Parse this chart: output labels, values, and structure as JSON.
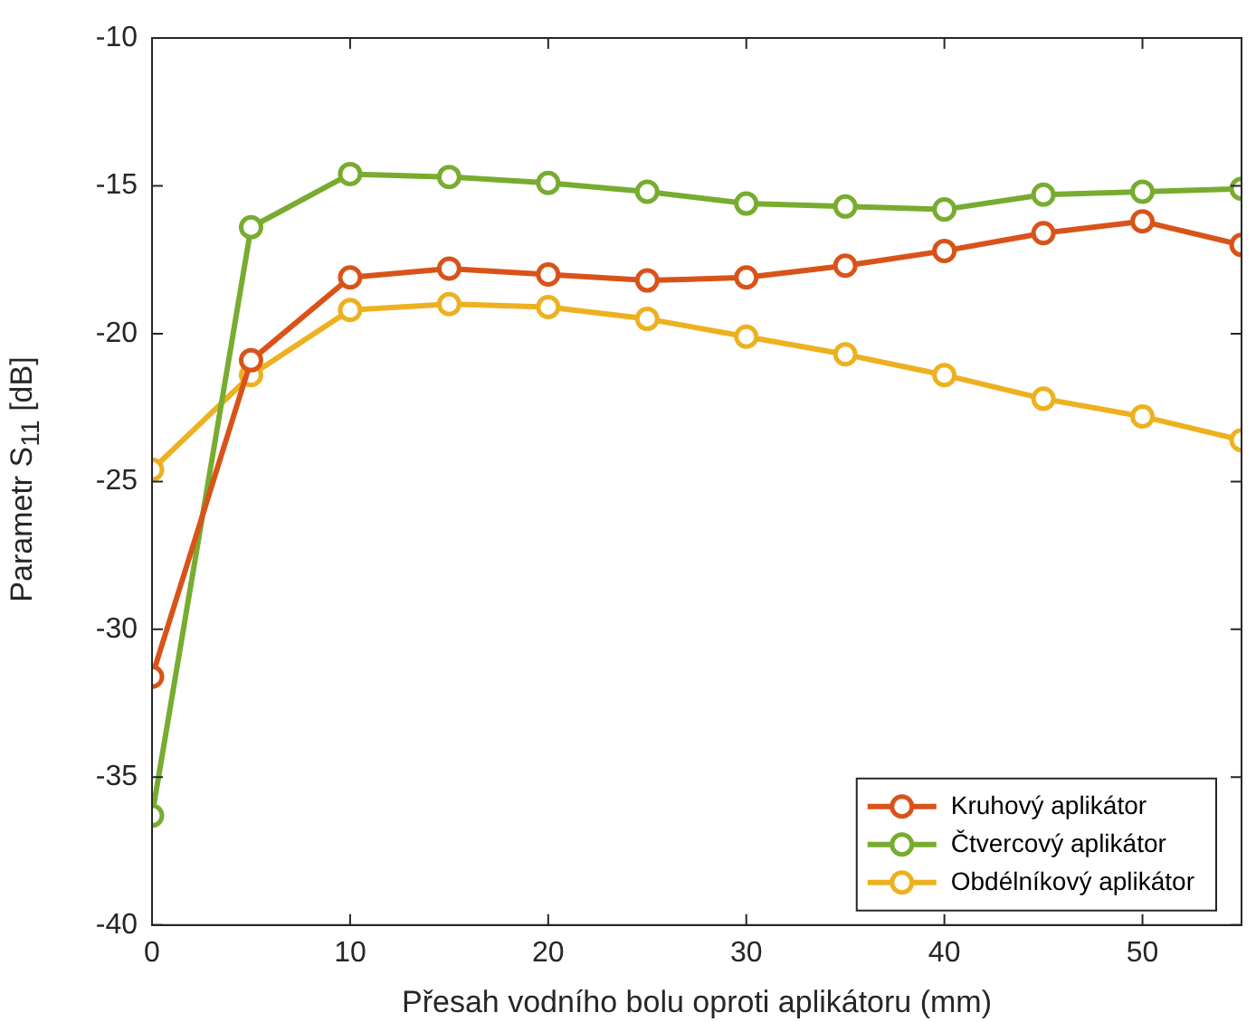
{
  "chart_data": {
    "type": "line",
    "xlabel": "Přesah vodního bolu oproti aplikátoru (mm)",
    "ylabel": "Parametr S$_{11}$ [dB]",
    "x": [
      0,
      5,
      10,
      15,
      20,
      25,
      30,
      35,
      40,
      45,
      50,
      55
    ],
    "series": [
      {
        "name": "Kruhový aplikátor",
        "color": "#d95319",
        "values": [
          -31.6,
          -20.9,
          -18.1,
          -17.8,
          -18.0,
          -18.2,
          -18.1,
          -17.7,
          -17.2,
          -16.6,
          -16.2,
          -17.0
        ]
      },
      {
        "name": "Čtvercový aplikátor",
        "color": "#77ac30",
        "values": [
          -36.3,
          -16.4,
          -14.6,
          -14.7,
          -14.9,
          -15.2,
          -15.6,
          -15.7,
          -15.8,
          -15.3,
          -15.2,
          -15.1
        ]
      },
      {
        "name": "Obdélníkový aplikátor",
        "color": "#edb120",
        "values": [
          -24.6,
          -21.4,
          -19.2,
          -19.0,
          -19.1,
          -19.5,
          -20.1,
          -20.7,
          -21.4,
          -22.2,
          -22.8,
          -23.6
        ]
      }
    ],
    "xlim": [
      0,
      55
    ],
    "xticks": [
      0,
      10,
      20,
      30,
      40,
      50
    ],
    "ylim": [
      -40,
      -10
    ],
    "yticks": [
      -40,
      -35,
      -30,
      -25,
      -20,
      -15,
      -10
    ],
    "grid": false,
    "legend": "bottom right",
    "marker": "circle",
    "line_style": "solid"
  }
}
